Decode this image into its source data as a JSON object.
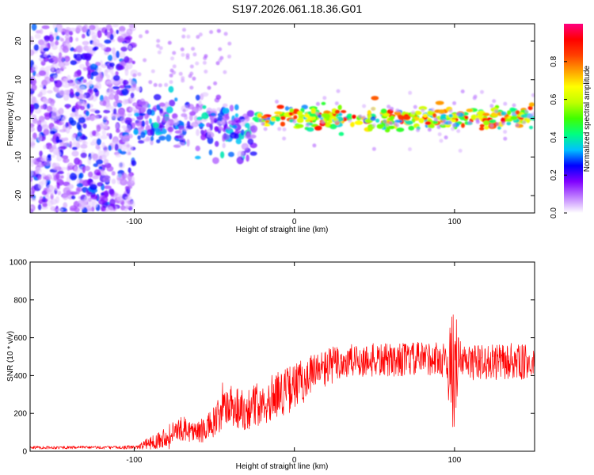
{
  "title": "S197.2026.061.18.36.G01",
  "chart_data": [
    {
      "type": "heatmap",
      "xlabel": "Height of straight line (km)",
      "ylabel": "Frequency (Hz)",
      "xlim": [
        -165,
        150
      ],
      "ylim": [
        -24.5,
        24.5
      ],
      "x_ticks": [
        -100,
        0,
        100
      ],
      "y_ticks": [
        -20,
        -10,
        0,
        10,
        20
      ],
      "colorbar": {
        "label": "Normalized spectral amplitude",
        "range": [
          0,
          1
        ],
        "ticks": [
          "0.0",
          "0.2",
          "0.4",
          "0.6",
          "0.8"
        ],
        "colors": [
          "#ffffff",
          "#c080ff",
          "#8000ff",
          "#0000ff",
          "#00c0ff",
          "#00ff80",
          "#40ff00",
          "#c0ff00",
          "#ffff00",
          "#ffa000",
          "#ff4000",
          "#ff0000",
          "#ff0080"
        ]
      },
      "regions": [
        {
          "x_range": [
            -165,
            -100
          ],
          "description_type": "noise",
          "freq_range": [
            -24,
            24
          ],
          "amplitude": 0.1
        },
        {
          "x_range": [
            -100,
            -25
          ],
          "description_type": "emerging",
          "freq_range": [
            -12,
            10
          ],
          "amplitude": 0.25
        },
        {
          "x_range": [
            -25,
            150
          ],
          "description_type": "carrier",
          "freq_center": 0,
          "amplitude": 0.85
        }
      ]
    },
    {
      "type": "line",
      "xlabel": "Height of straight line (km)",
      "ylabel": "SNR (10 * v/v)",
      "xlim": [
        -165,
        150
      ],
      "ylim": [
        0,
        1000
      ],
      "x_ticks": [
        -100,
        0,
        100
      ],
      "y_ticks": [
        0,
        200,
        400,
        600,
        800,
        1000
      ],
      "color": "#ff0000",
      "x": [
        -165,
        -150,
        -130,
        -110,
        -100,
        -95,
        -90,
        -85,
        -80,
        -75,
        -70,
        -65,
        -60,
        -55,
        -50,
        -45,
        -40,
        -35,
        -30,
        -25,
        -20,
        -15,
        -10,
        -5,
        0,
        5,
        10,
        15,
        20,
        25,
        30,
        35,
        40,
        45,
        50,
        55,
        60,
        65,
        70,
        75,
        80,
        85,
        90,
        95,
        98,
        100,
        102,
        105,
        110,
        115,
        120,
        125,
        130,
        135,
        140,
        145,
        150
      ],
      "values": [
        20,
        20,
        20,
        20,
        22,
        30,
        45,
        60,
        80,
        100,
        120,
        110,
        100,
        120,
        150,
        200,
        250,
        230,
        220,
        240,
        260,
        280,
        300,
        320,
        340,
        370,
        400,
        420,
        440,
        460,
        470,
        470,
        480,
        480,
        480,
        480,
        480,
        485,
        485,
        485,
        490,
        490,
        490,
        480,
        400,
        480,
        470,
        470,
        470,
        470,
        470,
        470,
        470,
        470,
        470,
        470,
        470
      ],
      "noise_amplitude": [
        8,
        8,
        8,
        8,
        10,
        20,
        35,
        45,
        55,
        60,
        65,
        60,
        60,
        70,
        90,
        110,
        120,
        120,
        110,
        115,
        120,
        125,
        125,
        125,
        125,
        120,
        120,
        110,
        105,
        100,
        100,
        95,
        95,
        90,
        90,
        90,
        90,
        90,
        90,
        90,
        90,
        90,
        90,
        100,
        300,
        380,
        150,
        100,
        95,
        95,
        95,
        95,
        95,
        95,
        95,
        95,
        95
      ]
    }
  ]
}
